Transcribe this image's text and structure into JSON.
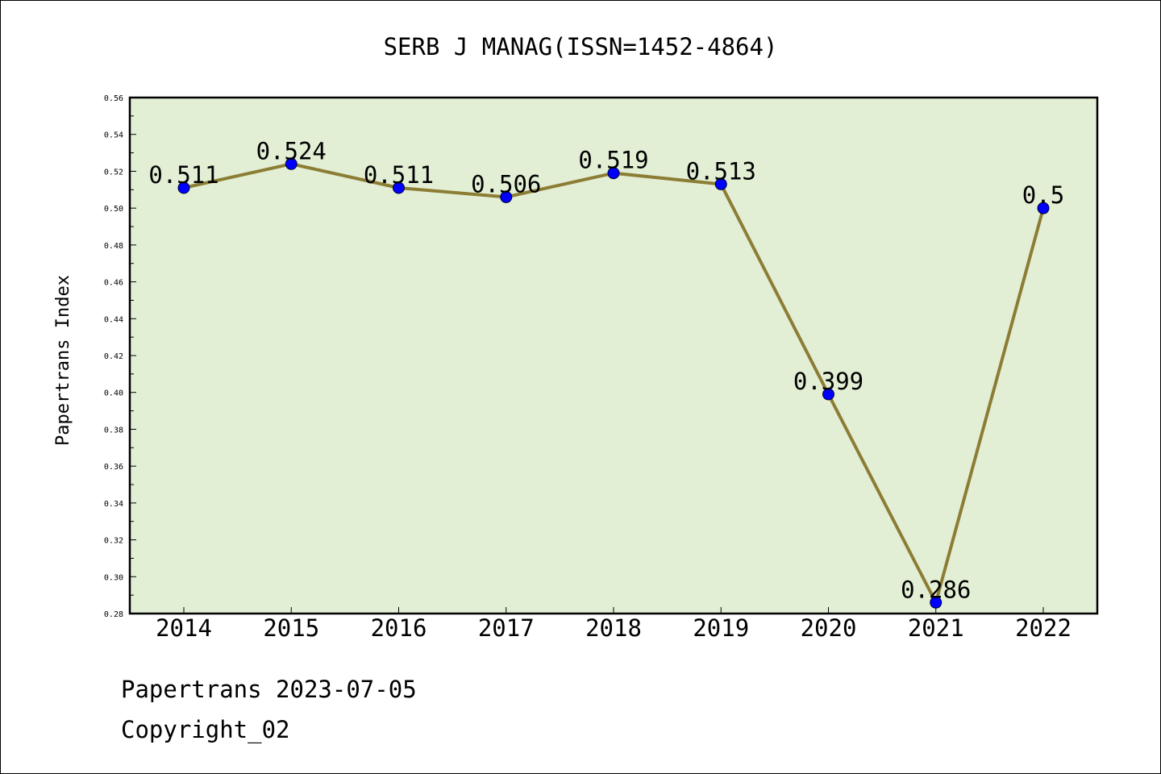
{
  "chart_data": {
    "type": "line",
    "title": "SERB J MANAG(ISSN=1452-4864)",
    "ylabel": "Papertrans Index",
    "xlabel": "",
    "categories": [
      "2014",
      "2015",
      "2016",
      "2017",
      "2018",
      "2019",
      "2020",
      "2021",
      "2022"
    ],
    "series": [
      {
        "values": [
          0.511,
          0.524,
          0.511,
          0.506,
          0.519,
          0.513,
          0.399,
          0.286,
          0.5
        ],
        "labels": [
          "0.511",
          "0.524",
          "0.511",
          "0.506",
          "0.519",
          "0.513",
          "0.399",
          "0.286",
          "0.5"
        ]
      }
    ],
    "ylim": [
      0.28,
      0.56
    ],
    "yticks": [
      "0.28",
      "0.30",
      "0.32",
      "0.34",
      "0.36",
      "0.38",
      "0.40",
      "0.42",
      "0.44",
      "0.46",
      "0.48",
      "0.50",
      "0.52",
      "0.54",
      "0.56"
    ],
    "grid": false,
    "legend": "none",
    "colors": {
      "plot_background": "#e2efd5",
      "line": "#8c7d35",
      "marker": "#0000ff"
    }
  },
  "footer": {
    "line1": "Papertrans 2023-07-05",
    "line2": "Copyright_02"
  }
}
